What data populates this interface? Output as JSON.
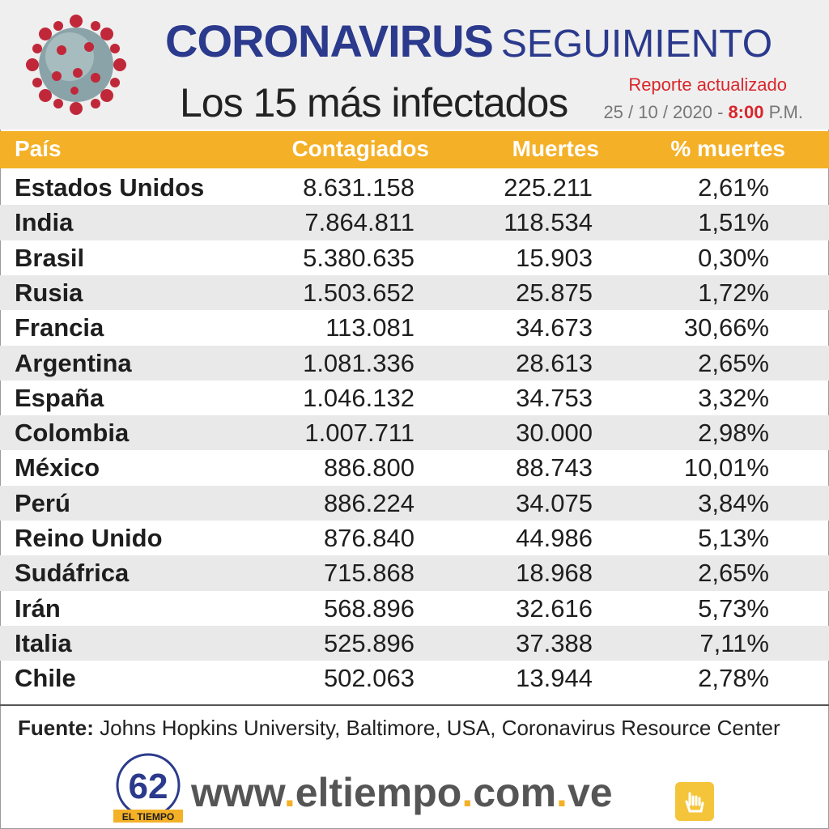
{
  "header": {
    "title_main": "Coronavirus",
    "title_second": "Seguimiento",
    "subtitle": "Los 15 más infectados",
    "report_label": "Reporte actualizado",
    "date": "25 / 10 / 2020 -",
    "time": "8:00",
    "time_suffix": "P.M."
  },
  "table": {
    "columns": [
      "País",
      "Contagiados",
      "Muertes",
      "% muertes"
    ],
    "rows": [
      [
        "Estados Unidos",
        "8.631.158",
        "225.211",
        "2,61%"
      ],
      [
        "India",
        "7.864.811",
        "118.534",
        "1,51%"
      ],
      [
        "Brasil",
        "5.380.635",
        "15.903",
        "0,30%"
      ],
      [
        "Rusia",
        "1.503.652",
        "25.875",
        "1,72%"
      ],
      [
        "Francia",
        "113.081",
        "34.673",
        "30,66%"
      ],
      [
        "Argentina",
        "1.081.336",
        "28.613",
        "2,65%"
      ],
      [
        "España",
        "1.046.132",
        "34.753",
        "3,32%"
      ],
      [
        "Colombia",
        "1.007.711",
        "30.000",
        "2,98%"
      ],
      [
        "México",
        "886.800",
        "88.743",
        "10,01%"
      ],
      [
        "Perú",
        "886.224",
        "34.075",
        "3,84%"
      ],
      [
        "Reino Unido",
        "876.840",
        "44.986",
        "5,13%"
      ],
      [
        "Sudáfrica",
        "715.868",
        "18.968",
        "2,65%"
      ],
      [
        "Irán",
        "568.896",
        "32.616",
        "5,73%"
      ],
      [
        "Italia",
        "525.896",
        "37.388",
        "7,11%"
      ],
      [
        "Chile",
        "502.063",
        "13.944",
        "2,78%"
      ]
    ]
  },
  "footer": {
    "source_label": "Fuente:",
    "source_text": " Johns Hopkins University, Baltimore, USA, Coronavirus Resource Center",
    "url_parts": [
      "www",
      ".",
      "eltiempo",
      ".",
      "com",
      ".",
      "ve"
    ],
    "logo_number": "62",
    "logo_name": "EL TIEMPO"
  },
  "colors": {
    "brand_blue": "#2b3a8c",
    "accent_orange": "#f4b026",
    "accent_red": "#d8262b"
  },
  "icons": [
    "coronavirus-icon",
    "logo-62-icon",
    "hand-click-icon"
  ]
}
